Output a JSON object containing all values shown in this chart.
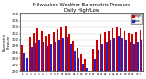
{
  "title": "Milwaukee Weather Barometric Pressure\nDaily High/Low",
  "title_fontsize": 3.8,
  "bar_width": 0.85,
  "high_color": "#cc0000",
  "low_color": "#2222cc",
  "background_color": "#ffffff",
  "grid_color": "#cccccc",
  "ylim_min": 29.0,
  "ylim_max": 30.85,
  "ytick_fontsize": 2.5,
  "xtick_fontsize": 2.0,
  "days": [
    1,
    2,
    3,
    4,
    5,
    6,
    7,
    8,
    9,
    10,
    11,
    12,
    13,
    14,
    15,
    16,
    17,
    18,
    19,
    20,
    21,
    22,
    23,
    24,
    25,
    26,
    27,
    28,
    29,
    30,
    31
  ],
  "highs": [
    29.82,
    29.72,
    30.08,
    30.22,
    30.35,
    30.28,
    30.1,
    30.18,
    30.25,
    30.32,
    30.38,
    30.42,
    30.18,
    29.95,
    29.72,
    29.52,
    29.38,
    29.32,
    29.7,
    30.0,
    30.18,
    30.25,
    30.28,
    30.35,
    30.4,
    30.35,
    30.28,
    30.22,
    30.18,
    30.24,
    30.3
  ],
  "lows": [
    29.58,
    29.4,
    29.75,
    29.9,
    30.0,
    29.92,
    29.78,
    29.85,
    29.92,
    30.0,
    30.05,
    30.08,
    29.88,
    29.65,
    29.42,
    29.22,
    29.1,
    29.02,
    29.38,
    29.68,
    29.85,
    29.92,
    29.98,
    30.05,
    30.1,
    30.05,
    29.98,
    29.92,
    29.88,
    29.94,
    30.0
  ],
  "legend_high": "High",
  "legend_low": "Low",
  "dpi": 100
}
